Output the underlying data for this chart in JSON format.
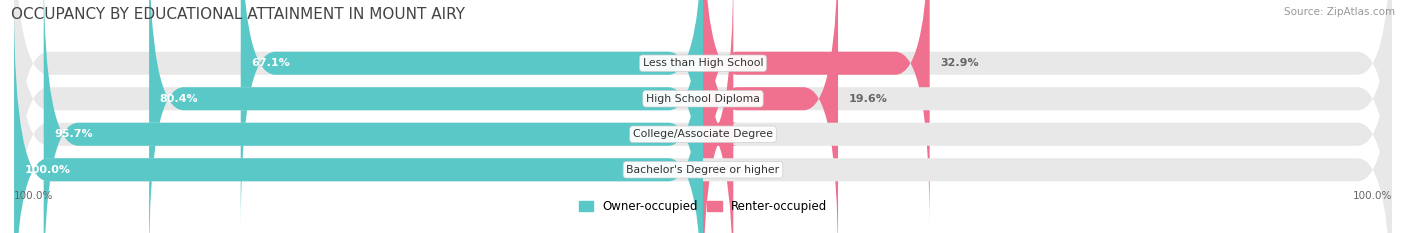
{
  "title": "OCCUPANCY BY EDUCATIONAL ATTAINMENT IN MOUNT AIRY",
  "source": "Source: ZipAtlas.com",
  "categories": [
    "Less than High School",
    "High School Diploma",
    "College/Associate Degree",
    "Bachelor's Degree or higher"
  ],
  "owner_values": [
    67.1,
    80.4,
    95.7,
    100.0
  ],
  "renter_values": [
    32.9,
    19.6,
    4.4,
    0.0
  ],
  "owner_color": "#5BC8C8",
  "renter_color": "#F07090",
  "owner_label": "Owner-occupied",
  "renter_label": "Renter-occupied",
  "background_color": "#ffffff",
  "bar_bg_color": "#e8e8e8",
  "x_left_label": "100.0%",
  "x_right_label": "100.0%",
  "title_fontsize": 11,
  "value_fontsize": 8,
  "cat_fontsize": 7.8,
  "legend_fontsize": 8.5
}
